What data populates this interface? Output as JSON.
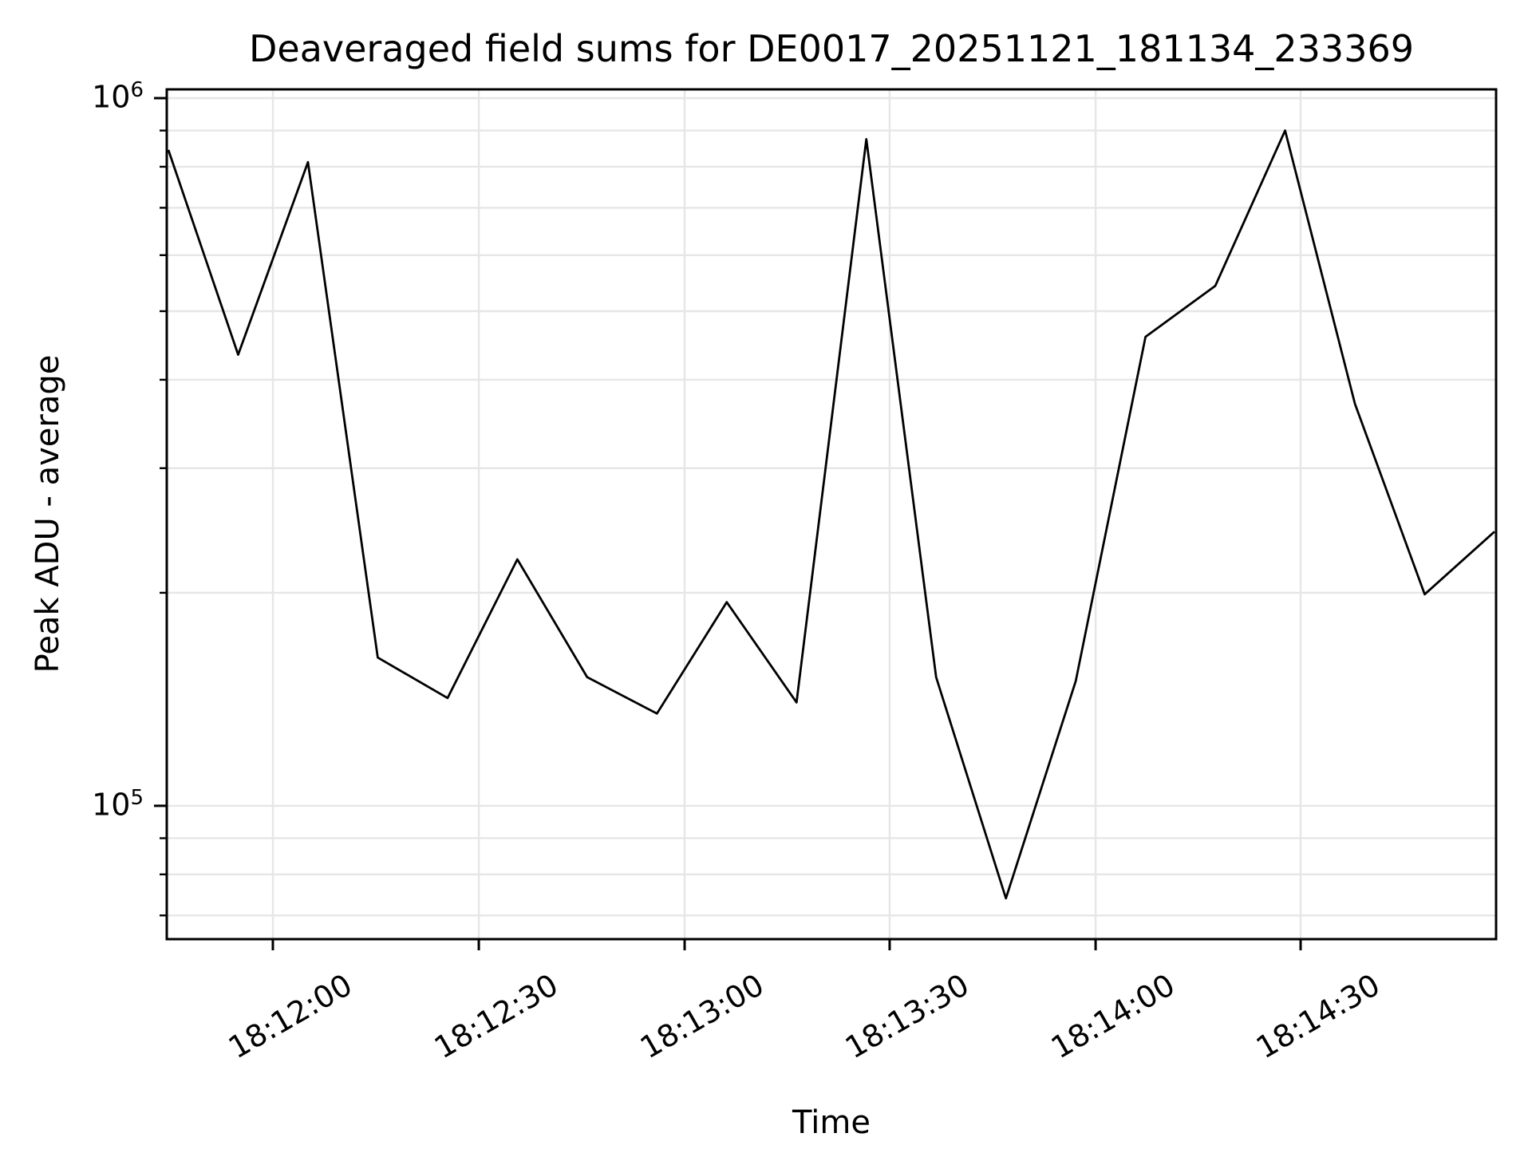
{
  "figure": {
    "title": "Deaveraged field sums for DE0017_20251121_181134_233369",
    "xlabel": "Time",
    "ylabel": "Peak ADU - average"
  },
  "chart_data": {
    "type": "line",
    "title": "Deaveraged field sums for DE0017_20251121_181134_233369",
    "xlabel": "Time",
    "ylabel": "Peak ADU - average",
    "yscale": "log",
    "ylim": [
      64800,
      1029000
    ],
    "grid": true,
    "legend_position": "none",
    "line_color": "#000000",
    "grid_color": "#e6e6e6",
    "x": [
      "18:11:45",
      "18:11:55",
      "18:12:05",
      "18:12:15",
      "18:12:25",
      "18:12:35",
      "18:12:45",
      "18:12:55",
      "18:13:05",
      "18:13:15",
      "18:13:25",
      "18:13:35",
      "18:13:45",
      "18:13:55",
      "18:14:05",
      "18:14:15",
      "18:14:25",
      "18:14:35",
      "18:14:45",
      "18:14:55"
    ],
    "values": [
      845000,
      434000,
      812000,
      162000,
      142000,
      223000,
      152000,
      135000,
      194000,
      140000,
      875000,
      152000,
      74000,
      150000,
      460000,
      543000,
      900000,
      370000,
      199000,
      244000
    ],
    "x_tick_labels": [
      "18:12:00",
      "18:12:30",
      "18:13:00",
      "18:13:30",
      "18:14:00",
      "18:14:30"
    ],
    "y_major_tick_exponents": [
      6,
      5
    ]
  }
}
